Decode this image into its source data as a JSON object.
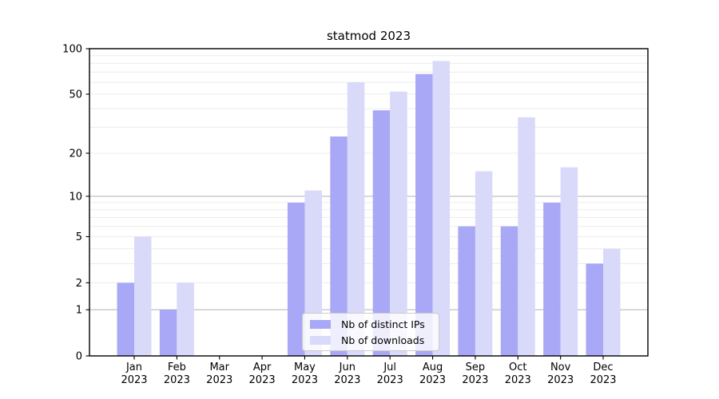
{
  "chart_data": {
    "type": "bar",
    "title": "statmod 2023",
    "months": [
      "Jan",
      "Feb",
      "Mar",
      "Apr",
      "May",
      "Jun",
      "Jul",
      "Aug",
      "Sep",
      "Oct",
      "Nov",
      "Dec"
    ],
    "year": "2023",
    "series": [
      {
        "key": "distinct-ips",
        "name": "Nb of distinct IPs",
        "color": "#a8a8f6",
        "values": [
          2,
          1,
          0,
          0,
          9,
          26,
          39,
          68,
          6,
          6,
          9,
          3
        ]
      },
      {
        "key": "downloads",
        "name": "Nb of downloads",
        "color": "#d9d9fa",
        "values": [
          5,
          2,
          0,
          0,
          11,
          60,
          52,
          83,
          15,
          35,
          16,
          4
        ]
      }
    ],
    "yscale": "log1p",
    "ylim": [
      0,
      100
    ],
    "yticks": [
      100,
      50,
      20,
      10,
      5,
      2,
      1,
      0
    ],
    "grid_major": [
      1,
      10
    ],
    "grid_minor": [
      2,
      3,
      4,
      5,
      6,
      7,
      8,
      9,
      20,
      30,
      40,
      50,
      60,
      70,
      80,
      90
    ],
    "grid_on": true,
    "legend_position": "lower center",
    "colors": {
      "grid_minor": "#ececec",
      "grid_major": "#b0b0b0",
      "axis": "#000000",
      "text": "#000000",
      "background": "#ffffff"
    }
  }
}
